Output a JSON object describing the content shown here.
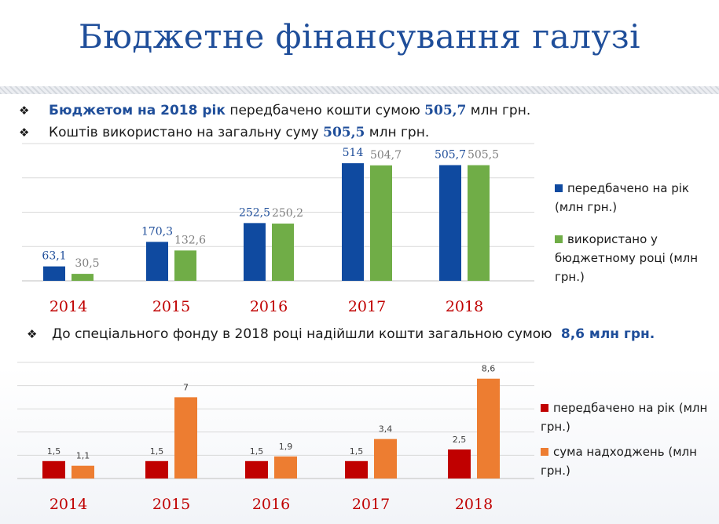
{
  "title": "Бюджетне фінансування галузі",
  "bullets": [
    {
      "mark": "❖",
      "hl": "Бюджетом на 2018 рік",
      "t1": " передбачено кошти сумою ",
      "num": "505,7",
      "t2": " млн грн."
    },
    {
      "mark": "❖",
      "t1": "Коштів використано на загальну суму ",
      "num": "505,5",
      "t2": " млн грн."
    },
    {
      "mark": "❖",
      "t1": "До спеціального фонду в 2018 році надійшли кошти загальною сумою ",
      "num": "8,6 млн грн."
    }
  ],
  "colors": {
    "title": "#1f4e9a",
    "chart1_a": "#0f4aa0",
    "chart1_b": "#70ad47",
    "chart2_a": "#c00000",
    "chart2_b": "#ed7d31",
    "year": "#c00000"
  },
  "chart_data": [
    {
      "type": "bar",
      "categories": [
        "2014",
        "2015",
        "2016",
        "2017",
        "2018"
      ],
      "series": [
        {
          "name": "передбачено на рік (млн грн.)",
          "values": [
            63.1,
            170.3,
            252.5,
            514,
            505.7
          ],
          "labels": [
            "63,1",
            "170,3",
            "252,5",
            "514",
            "505,7"
          ]
        },
        {
          "name": "використано у бюджетному році (млн грн.)",
          "values": [
            30.5,
            132.6,
            250.2,
            504.7,
            505.5
          ],
          "labels": [
            "30,5",
            "132,6",
            "250,2",
            "504,7",
            "505,5"
          ]
        }
      ],
      "ylim": [
        0,
        600
      ],
      "grid": true,
      "legend": "right"
    },
    {
      "type": "bar",
      "categories": [
        "2014",
        "2015",
        "2016",
        "2017",
        "2018"
      ],
      "series": [
        {
          "name": "передбачено на рік (млн грн.)",
          "values": [
            1.5,
            1.5,
            1.5,
            1.5,
            2.5
          ],
          "labels": [
            "1,5",
            "1,5",
            "1,5",
            "1,5",
            "2,5"
          ]
        },
        {
          "name": "сума надходжень (млн грн.)",
          "values": [
            1.1,
            7,
            1.9,
            3.4,
            8.6
          ],
          "labels": [
            "1,1",
            "7",
            "1,9",
            "3,4",
            "8,6"
          ]
        }
      ],
      "ylim": [
        0,
        10
      ],
      "grid": true,
      "legend": "right"
    }
  ]
}
